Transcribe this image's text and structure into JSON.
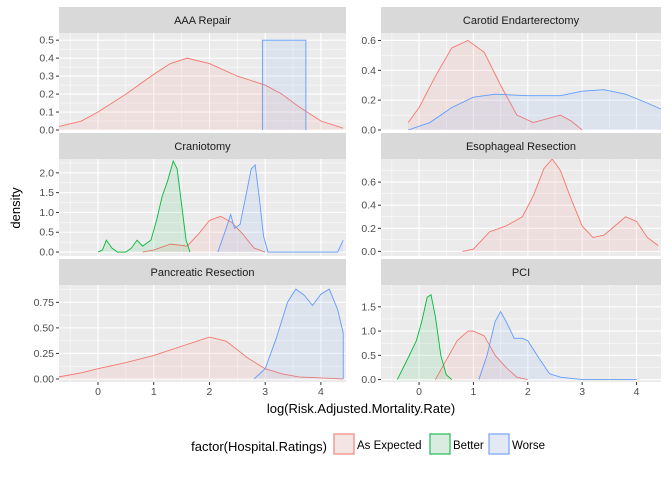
{
  "chart_data": {
    "type": "area",
    "subtype": "faceted density",
    "ylabel": "density",
    "xlabel": "log(Risk.Adjusted.Mortality.Rate)",
    "xlim": [
      -0.7,
      4.45
    ],
    "x_ticks": [
      0,
      1,
      2,
      3,
      4
    ],
    "legend": {
      "title": "factor(Hospital.Ratings)",
      "position": "bottom",
      "entries": [
        {
          "name": "As Expected",
          "stroke": "#F8766D",
          "fill": "#F8766D"
        },
        {
          "name": "Better",
          "stroke": "#00BA38",
          "fill": "#00BA38"
        },
        {
          "name": "Worse",
          "stroke": "#619CFF",
          "fill": "#619CFF"
        }
      ]
    },
    "colors": {
      "panel_background": "#EBEBEB",
      "strip_background": "#D9D9D9",
      "grid": "#FFFFFF"
    },
    "panels": [
      {
        "title": "AAA Repair",
        "ylim": [
          0,
          0.54
        ],
        "y_ticks": [
          0.0,
          0.1,
          0.2,
          0.3,
          0.4,
          0.5
        ],
        "y_tick_labels": [
          "0.0",
          "0.1",
          "0.2",
          "0.3",
          "0.4",
          "0.5"
        ],
        "series": [
          {
            "name": "As Expected",
            "x": [
              -0.7,
              -0.3,
              0.0,
              0.5,
              1.0,
              1.3,
              1.6,
              2.0,
              2.5,
              3.0,
              3.3,
              3.6,
              4.0,
              4.4
            ],
            "y": [
              0.02,
              0.05,
              0.1,
              0.2,
              0.31,
              0.37,
              0.4,
              0.37,
              0.3,
              0.25,
              0.2,
              0.13,
              0.05,
              0.01
            ]
          },
          {
            "name": "Worse",
            "x": [
              2.95,
              2.95,
              3.73,
              3.73
            ],
            "y": [
              0.0,
              0.5,
              0.5,
              0.0
            ]
          }
        ]
      },
      {
        "title": "Carotid Endarterectomy",
        "ylim": [
          0,
          0.65
        ],
        "y_ticks": [
          0.0,
          0.2,
          0.4,
          0.6
        ],
        "y_tick_labels": [
          "0.0",
          "0.2",
          "0.4",
          "0.6"
        ],
        "series": [
          {
            "name": "As Expected",
            "x": [
              -0.2,
              0.0,
              0.3,
              0.6,
              0.9,
              1.2,
              1.5,
              1.8,
              2.1,
              2.3,
              2.6,
              2.8,
              3.0
            ],
            "y": [
              0.05,
              0.15,
              0.36,
              0.55,
              0.6,
              0.52,
              0.3,
              0.1,
              0.05,
              0.07,
              0.1,
              0.06,
              0.0
            ]
          },
          {
            "name": "Worse",
            "x": [
              -0.2,
              0.2,
              0.6,
              1.0,
              1.4,
              2.0,
              2.6,
              3.0,
              3.4,
              3.8,
              4.2,
              4.45
            ],
            "y": [
              0.0,
              0.05,
              0.15,
              0.22,
              0.24,
              0.23,
              0.23,
              0.26,
              0.27,
              0.24,
              0.18,
              0.14
            ]
          }
        ]
      },
      {
        "title": "Craniotomy",
        "ylim": [
          -0.1,
          2.35
        ],
        "y_ticks": [
          0.0,
          0.5,
          1.0,
          1.5,
          2.0
        ],
        "y_tick_labels": [
          "0.0",
          "0.5",
          "1.0",
          "1.5",
          "2.0"
        ],
        "series": [
          {
            "name": "As Expected",
            "x": [
              0.8,
              1.0,
              1.3,
              1.6,
              1.8,
              2.0,
              2.2,
              2.4,
              2.6,
              2.8,
              3.0
            ],
            "y": [
              0.0,
              0.05,
              0.2,
              0.15,
              0.45,
              0.8,
              0.9,
              0.75,
              0.45,
              0.1,
              0.0
            ]
          },
          {
            "name": "Better",
            "x": [
              0.0,
              0.08,
              0.15,
              0.25,
              0.35,
              0.5,
              0.6,
              0.7,
              0.8,
              0.95,
              1.05,
              1.15,
              1.25,
              1.35,
              1.42,
              1.5,
              1.58,
              1.65
            ],
            "y": [
              0.0,
              0.05,
              0.3,
              0.1,
              0.0,
              0.0,
              0.1,
              0.3,
              0.15,
              0.3,
              0.8,
              1.4,
              1.8,
              2.3,
              2.1,
              1.2,
              0.3,
              0.0
            ]
          },
          {
            "name": "Worse",
            "x": [
              2.15,
              2.3,
              2.38,
              2.45,
              2.55,
              2.65,
              2.75,
              2.82,
              2.9,
              2.97,
              3.05,
              3.3,
              3.8,
              4.3,
              4.4
            ],
            "y": [
              0.0,
              0.6,
              0.95,
              0.6,
              0.7,
              1.4,
              2.1,
              2.2,
              1.3,
              0.4,
              0.0,
              0.0,
              0.0,
              0.0,
              0.3
            ]
          }
        ]
      },
      {
        "title": "Esophageal Resection",
        "ylim": [
          -0.04,
          0.8
        ],
        "y_ticks": [
          0.0,
          0.2,
          0.4,
          0.6
        ],
        "y_tick_labels": [
          "0.0",
          "0.2",
          "0.4",
          "0.6"
        ],
        "series": [
          {
            "name": "As Expected",
            "x": [
              0.8,
              1.0,
              1.3,
              1.6,
              1.9,
              2.1,
              2.3,
              2.45,
              2.6,
              2.8,
              3.0,
              3.2,
              3.4,
              3.6,
              3.8,
              4.0,
              4.2,
              4.4
            ],
            "y": [
              0.0,
              0.02,
              0.17,
              0.22,
              0.3,
              0.48,
              0.72,
              0.8,
              0.7,
              0.45,
              0.22,
              0.12,
              0.14,
              0.22,
              0.3,
              0.26,
              0.12,
              0.05
            ]
          }
        ]
      },
      {
        "title": "Pancreatic Resection",
        "ylim": [
          -0.03,
          0.92
        ],
        "y_ticks": [
          0.0,
          0.25,
          0.5,
          0.75
        ],
        "y_tick_labels": [
          "0.00",
          "0.25",
          "0.50",
          "0.75"
        ],
        "series": [
          {
            "name": "As Expected",
            "x": [
              -0.7,
              -0.3,
              0.0,
              0.5,
              1.0,
              1.5,
              2.0,
              2.3,
              2.7,
              3.0,
              3.3,
              3.6,
              4.0,
              4.4
            ],
            "y": [
              0.02,
              0.06,
              0.1,
              0.16,
              0.23,
              0.32,
              0.41,
              0.37,
              0.2,
              0.1,
              0.05,
              0.02,
              0.01,
              0.0
            ]
          },
          {
            "name": "Worse",
            "x": [
              2.8,
              3.0,
              3.2,
              3.4,
              3.55,
              3.7,
              3.85,
              4.0,
              4.15,
              4.3,
              4.4,
              4.4
            ],
            "y": [
              0.0,
              0.1,
              0.4,
              0.75,
              0.88,
              0.82,
              0.72,
              0.83,
              0.88,
              0.68,
              0.45,
              0.0
            ]
          }
        ]
      },
      {
        "title": "PCI",
        "ylim": [
          -0.05,
          1.95
        ],
        "y_ticks": [
          0.0,
          0.5,
          1.0,
          1.5
        ],
        "y_tick_labels": [
          "0.0",
          "0.5",
          "1.0",
          "1.5"
        ],
        "series": [
          {
            "name": "As Expected",
            "x": [
              0.3,
              0.5,
              0.7,
              0.9,
              1.0,
              1.2,
              1.4,
              1.6,
              1.8,
              2.0
            ],
            "y": [
              0.0,
              0.4,
              0.8,
              1.0,
              1.0,
              0.9,
              0.5,
              0.25,
              0.05,
              0.0
            ]
          },
          {
            "name": "Better",
            "x": [
              -0.4,
              -0.2,
              -0.05,
              0.05,
              0.15,
              0.22,
              0.3,
              0.4,
              0.5,
              0.6
            ],
            "y": [
              0.0,
              0.45,
              0.8,
              1.2,
              1.7,
              1.75,
              1.3,
              0.5,
              0.1,
              0.0
            ]
          },
          {
            "name": "Worse",
            "x": [
              1.1,
              1.25,
              1.4,
              1.5,
              1.6,
              1.75,
              1.9,
              2.0,
              2.2,
              2.4,
              2.6,
              3.0,
              3.5,
              4.0
            ],
            "y": [
              0.0,
              0.5,
              1.2,
              1.4,
              1.2,
              0.85,
              0.85,
              0.8,
              0.45,
              0.12,
              0.05,
              0.0,
              0.0,
              0.0
            ]
          }
        ]
      }
    ]
  }
}
